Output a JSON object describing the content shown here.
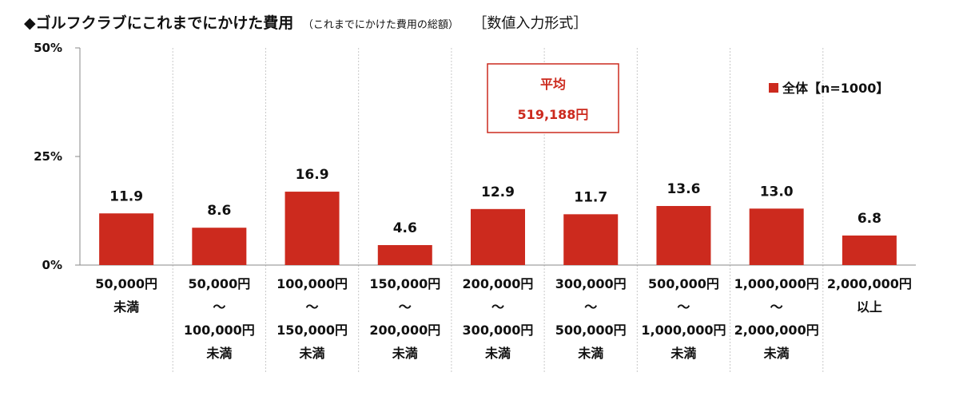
{
  "title": {
    "main": "◆ゴルフクラブにこれまでにかけた費用",
    "sub": "（これまでにかけた費用の総額）",
    "format": "［数値入力形式］"
  },
  "colors": {
    "bar": "#cc2a1e",
    "axis": "#888888",
    "grid": "#c8c8c8",
    "note_border": "#cc2a1e"
  },
  "annotation": {
    "label": "平均",
    "value": "519,188円"
  },
  "chart_data": {
    "type": "bar",
    "title": "◆ゴルフクラブにこれまでにかけた費用",
    "ylim": [
      0,
      50
    ],
    "yticks": [
      0,
      25,
      50
    ],
    "ytick_labels": [
      "0%",
      "25%",
      "50%"
    ],
    "legend_position": "top-right",
    "categories": [
      [
        "50,000円",
        "未満"
      ],
      [
        "50,000円",
        "～",
        "100,000円",
        "未満"
      ],
      [
        "100,000円",
        "～",
        "150,000円",
        "未満"
      ],
      [
        "150,000円",
        "～",
        "200,000円",
        "未満"
      ],
      [
        "200,000円",
        "～",
        "300,000円",
        "未満"
      ],
      [
        "300,000円",
        "～",
        "500,000円",
        "未満"
      ],
      [
        "500,000円",
        "～",
        "1,000,000円",
        "未満"
      ],
      [
        "1,000,000円",
        "～",
        "2,000,000円",
        "未満"
      ],
      [
        "2,000,000円",
        "以上"
      ]
    ],
    "series": [
      {
        "name": "全体【n=1000】",
        "values": [
          11.9,
          8.6,
          16.9,
          4.6,
          12.9,
          11.7,
          13.6,
          13.0,
          6.8
        ]
      }
    ]
  }
}
